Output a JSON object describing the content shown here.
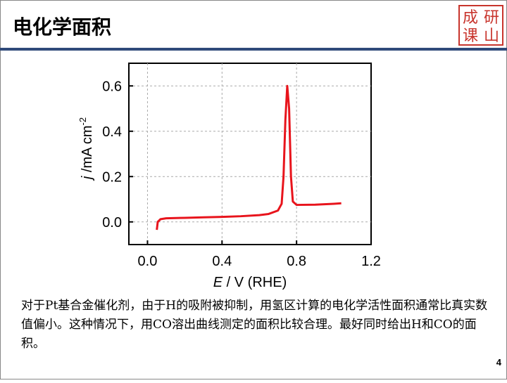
{
  "header": {
    "title": "电化学面积",
    "logo": [
      "成",
      "研",
      "课",
      "山"
    ]
  },
  "chart_data": {
    "type": "line",
    "xlabel": {
      "italic": "E",
      "text": " / V (RHE)"
    },
    "ylabel": {
      "italic": "j",
      "text": " /mA cm",
      "sup": "-2"
    },
    "x": [
      0.05,
      0.055,
      0.07,
      0.1,
      0.2,
      0.3,
      0.4,
      0.5,
      0.6,
      0.65,
      0.7,
      0.72,
      0.73,
      0.74,
      0.75,
      0.76,
      0.77,
      0.78,
      0.8,
      0.9,
      1.0,
      1.04
    ],
    "series": [
      {
        "color": "#e8141c",
        "values": [
          -0.035,
          0.0,
          0.012,
          0.016,
          0.018,
          0.02,
          0.022,
          0.025,
          0.03,
          0.035,
          0.05,
          0.08,
          0.2,
          0.45,
          0.6,
          0.5,
          0.2,
          0.09,
          0.075,
          0.076,
          0.08,
          0.082
        ]
      }
    ],
    "xlim": [
      -0.1,
      1.2
    ],
    "ylim": [
      -0.1,
      0.7
    ],
    "xticks": [
      {
        "value": 0,
        "label": "0.0"
      },
      0.4,
      0.8,
      1.2
    ],
    "yticks": [
      {
        "value": 0,
        "label": "0.0"
      },
      0.2,
      0.4,
      0.6
    ],
    "grid": true
  },
  "body": {
    "paragraph": "对于Pt基合金催化剂，由于H的吸附被抑制，用氢区计算的电化学活性面积通常比真实数值偏小。这种情况下，用CO溶出曲线测定的面积比较合理。最好同时给出H和CO的面积。"
  },
  "footer": {
    "page": "4"
  }
}
